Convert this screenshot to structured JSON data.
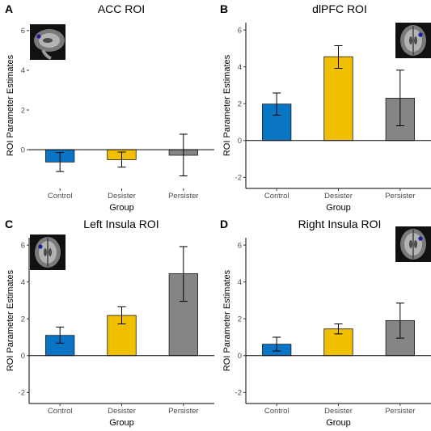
{
  "chart_data": [
    {
      "panel": "A",
      "title": "ACC ROI",
      "type": "bar",
      "xlabel": "Group",
      "ylabel": "ROI Parameter Estimates",
      "categories": [
        "Control",
        "Desister",
        "Persister"
      ],
      "values": [
        -0.62,
        -0.5,
        -0.28
      ],
      "error_low": [
        -1.1,
        -0.88,
        -1.32
      ],
      "error_high": [
        -0.14,
        -0.12,
        0.78
      ],
      "yticks": [
        0,
        2,
        4,
        6
      ],
      "ylim": [
        -1.95,
        6.4
      ],
      "inset_icon": "brain-sagittal-slice"
    },
    {
      "panel": "B",
      "title": "dlPFC ROI",
      "type": "bar",
      "xlabel": "Group",
      "ylabel": "ROI Parameter Estimates",
      "categories": [
        "Control",
        "Desister",
        "Persister"
      ],
      "values": [
        1.98,
        4.55,
        2.3
      ],
      "error_low": [
        1.38,
        3.92,
        0.8
      ],
      "error_high": [
        2.58,
        5.15,
        3.82
      ],
      "yticks": [
        -2,
        0,
        2,
        4,
        6
      ],
      "ylim": [
        -2.6,
        6.4
      ],
      "inset_icon": "brain-axial-slice"
    },
    {
      "panel": "C",
      "title": "Left Insula ROI",
      "type": "bar",
      "xlabel": "Group",
      "ylabel": "ROI Parameter Estimates",
      "categories": [
        "Control",
        "Desister",
        "Persister"
      ],
      "values": [
        1.1,
        2.18,
        4.45
      ],
      "error_low": [
        0.68,
        1.72,
        2.95
      ],
      "error_high": [
        1.55,
        2.65,
        5.92
      ],
      "yticks": [
        -2,
        0,
        2,
        4,
        6
      ],
      "ylim": [
        -2.6,
        6.4
      ],
      "inset_icon": "brain-axial-slice"
    },
    {
      "panel": "D",
      "title": "Right Insula ROI",
      "type": "bar",
      "xlabel": "Group",
      "ylabel": "ROI Parameter Estimates",
      "categories": [
        "Control",
        "Desister",
        "Persister"
      ],
      "values": [
        0.62,
        1.45,
        1.9
      ],
      "error_low": [
        0.25,
        1.18,
        0.95
      ],
      "error_high": [
        1.0,
        1.72,
        2.85
      ],
      "yticks": [
        -2,
        0,
        2,
        4,
        6
      ],
      "ylim": [
        -2.6,
        6.4
      ],
      "inset_icon": "brain-axial-slice"
    }
  ],
  "colors": {
    "Control": "#0a75c5",
    "Desister": "#f0c000",
    "Persister": "#858585",
    "roi_marker": "#1c1c9e"
  }
}
